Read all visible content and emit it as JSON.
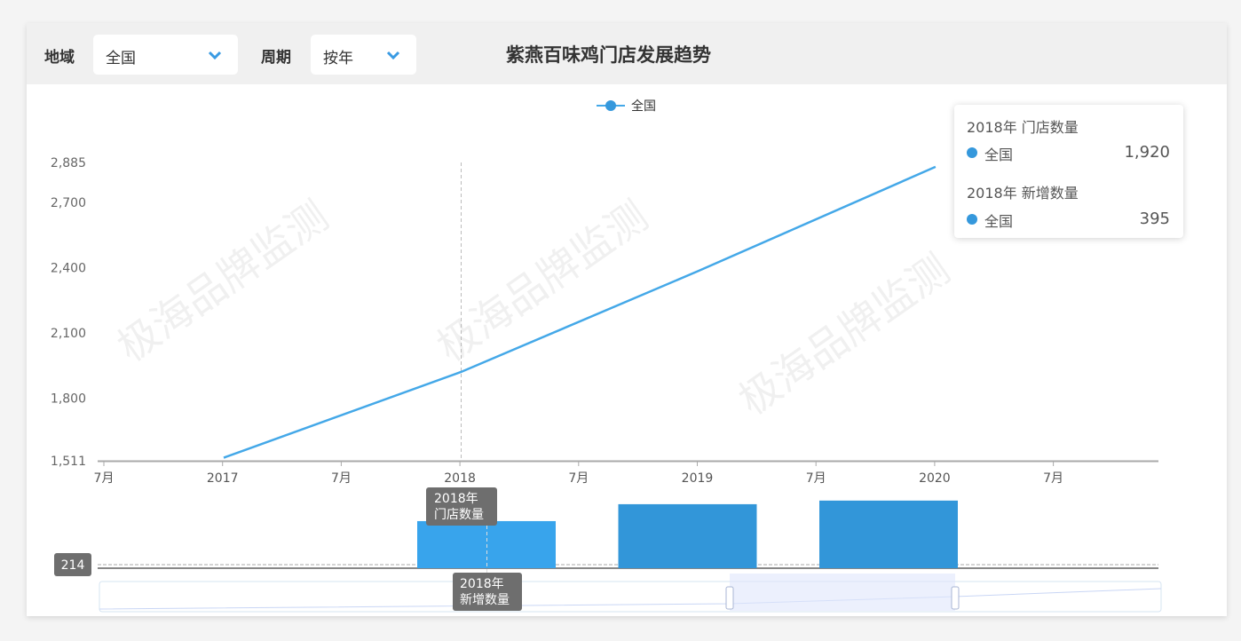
{
  "filters": {
    "region_label": "地域",
    "region_value": "全国",
    "period_label": "周期",
    "period_value": "按年"
  },
  "watermark": "极海品牌监测",
  "colors": {
    "line": "#44a8e8",
    "bar_2018": "#38a4ec",
    "bar": "#3296d9",
    "tooltip_dot": "#3598dc"
  },
  "chart_data": [
    {
      "type": "line",
      "title": "紫燕百味鸡门店发展趋势",
      "legend": [
        "全国"
      ],
      "legend_placement": "top",
      "x": [
        "2017",
        "2018",
        "2019",
        "2020"
      ],
      "series": [
        {
          "name": "全国",
          "values": [
            1525,
            1920,
            2385,
            2865
          ]
        }
      ],
      "x_tick_labels": [
        "7月",
        "2017",
        "7月",
        "2018",
        "7月",
        "2019",
        "7月",
        "2020",
        "7月"
      ],
      "y_ticks": [
        1511,
        1800,
        2100,
        2400,
        2700,
        2885
      ],
      "y_tick_labels": [
        "1,511",
        "1,800",
        "2,100",
        "2,400",
        "2,700",
        "2,885"
      ],
      "ylim": [
        1511,
        2885
      ],
      "grid": false,
      "axis_pointer_label": "2018年\n门店数量"
    },
    {
      "type": "bar",
      "categories": [
        "2018",
        "2019",
        "2020"
      ],
      "series": [
        {
          "name": "全国",
          "values": [
            395,
            465,
            480
          ]
        }
      ],
      "marker_line_value": "214",
      "axis_pointer_label": "2018年\n新增数量"
    }
  ],
  "tooltip": {
    "title1": "2018年 门店数量",
    "name1": "全国",
    "value1": "1,920",
    "title2": "2018年 新增数量",
    "name2": "全国",
    "value2": "395"
  }
}
